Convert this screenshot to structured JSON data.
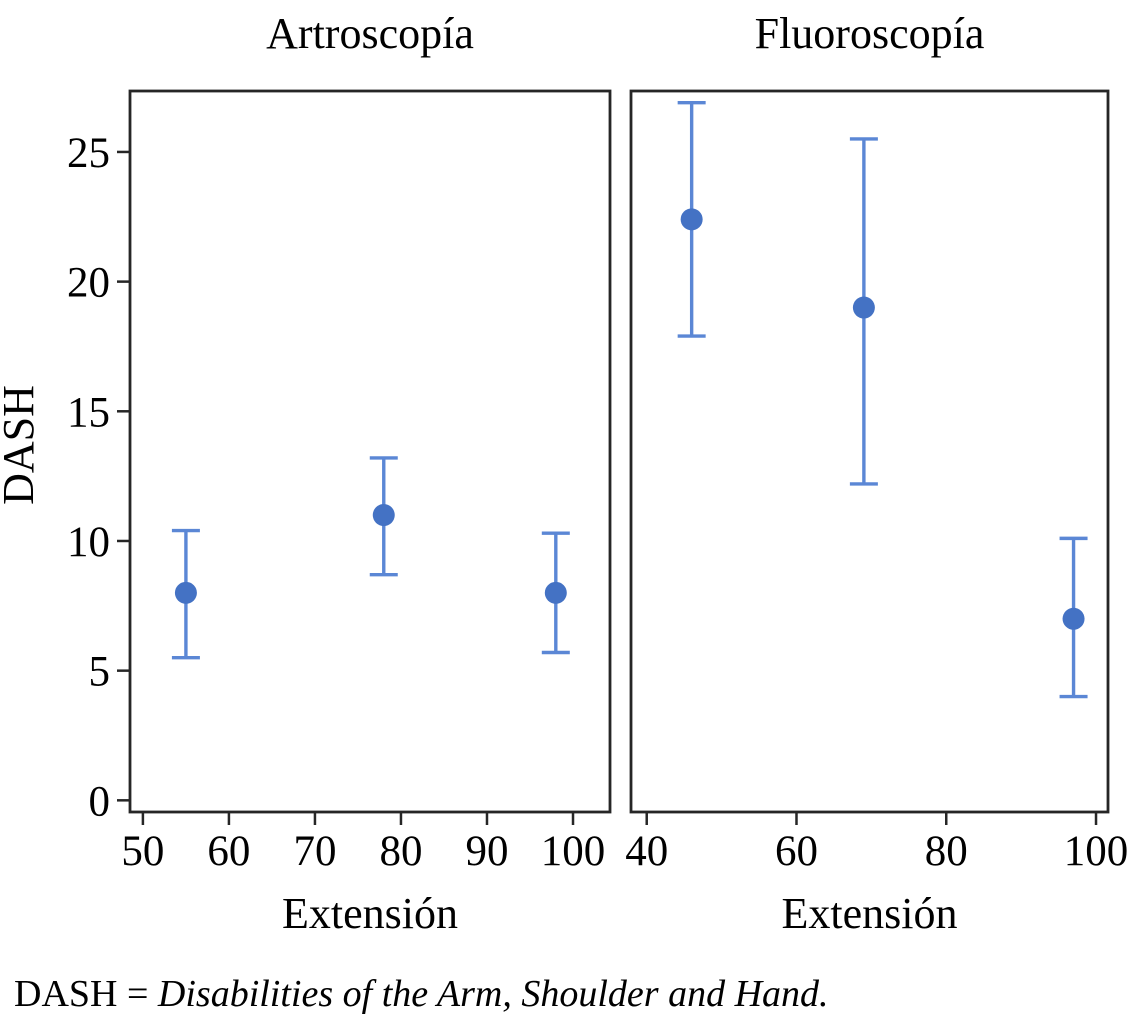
{
  "colors": {
    "marker": "#4472C4",
    "error_bar": "#5B87D5",
    "axis": "#262626",
    "text": "#000000",
    "background": "#FFFFFF"
  },
  "footnote": {
    "prefix": "DASH = ",
    "definition": "Disabilities of the Arm, Shoulder and Hand."
  },
  "chart_data": [
    {
      "type": "scatter",
      "title": "Artroscopía",
      "xlabel": "Extensión",
      "ylabel": "DASH",
      "xlim": [
        48.5,
        104.3
      ],
      "ylim": [
        -0.45,
        27.35
      ],
      "xticks": [
        50,
        60,
        70,
        80,
        90,
        100
      ],
      "yticks": [
        0,
        5,
        10,
        15,
        20,
        25
      ],
      "yaxis_labels_visible": true,
      "grid": false,
      "legend": null,
      "points": [
        {
          "x": 55,
          "y": 8.0,
          "ci_low": 5.5,
          "ci_high": 10.4
        },
        {
          "x": 78,
          "y": 11.0,
          "ci_low": 8.7,
          "ci_high": 13.2
        },
        {
          "x": 98,
          "y": 8.0,
          "ci_low": 5.7,
          "ci_high": 10.3
        }
      ]
    },
    {
      "type": "scatter",
      "title": "Fluoroscopía",
      "xlabel": "Extensión",
      "ylabel": "DASH",
      "xlim": [
        37.9,
        101.6
      ],
      "ylim": [
        -0.45,
        27.35
      ],
      "xticks": [
        40,
        60,
        80,
        100
      ],
      "yticks": [
        0,
        5,
        10,
        15,
        20,
        25
      ],
      "yaxis_labels_visible": false,
      "grid": false,
      "legend": null,
      "points": [
        {
          "x": 46,
          "y": 22.4,
          "ci_low": 17.9,
          "ci_high": 26.9
        },
        {
          "x": 69,
          "y": 19.0,
          "ci_low": 12.2,
          "ci_high": 25.5
        },
        {
          "x": 97,
          "y": 7.0,
          "ci_low": 4.0,
          "ci_high": 10.1
        }
      ]
    }
  ]
}
